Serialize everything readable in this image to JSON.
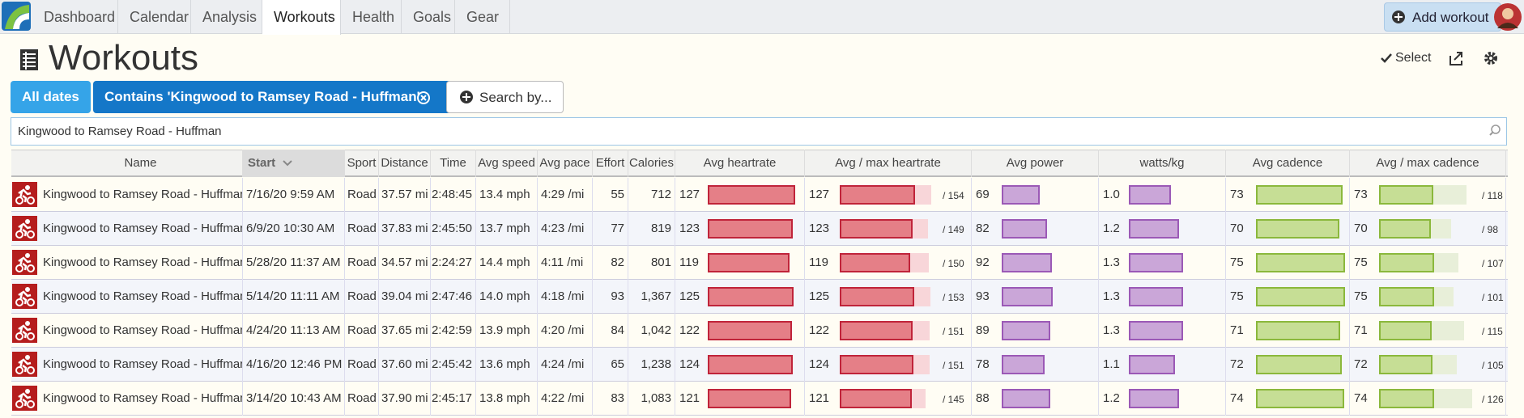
{
  "nav": {
    "items": [
      "Dashboard",
      "Calendar",
      "Analysis",
      "Workouts",
      "Health",
      "Goals",
      "Gear"
    ],
    "active": 3,
    "add_button": "Add workout"
  },
  "header": {
    "title": "Workouts",
    "select": "Select"
  },
  "filters": {
    "all_dates": "All dates",
    "contains": "Contains 'Kingwood to Ramsey Road - Huffman'",
    "search_by": "Search by..."
  },
  "search": {
    "value": "Kingwood to Ramsey Road - Huffman"
  },
  "table": {
    "columns": [
      "Name",
      "Start",
      "Sport",
      "Distance",
      "Time",
      "Avg speed",
      "Avg pace",
      "Effort",
      "Calories",
      "Avg heartrate",
      "Avg / max heartrate",
      "Avg power",
      "watts/kg",
      "Avg cadence",
      "Avg / max cadence"
    ],
    "sort_column": 1,
    "rows": [
      {
        "name": "Kingwood to Ramsey Road - Huffman",
        "start": "7/16/20 9:59 AM",
        "sport": "Road",
        "distance": "37.57 mi",
        "time": "2:48:45",
        "speed": "13.4 mph",
        "pace": "4:29 /mi",
        "effort": 55,
        "calories": 712,
        "hr": 127,
        "hr_max": {
          "value": 154,
          "label": "/ 154"
        },
        "power": 69,
        "wkg": {
          "value": 1.0,
          "label": "1.0"
        },
        "cadence": 73,
        "cadence_max": {
          "value": 118,
          "label": "/ 118"
        }
      },
      {
        "name": "Kingwood to Ramsey Road - Huffman",
        "start": "6/9/20 10:30 AM",
        "sport": "Road",
        "distance": "37.83 mi",
        "time": "2:45:50",
        "speed": "13.7 mph",
        "pace": "4:23 /mi",
        "effort": 77,
        "calories": 819,
        "hr": 123,
        "hr_max": {
          "value": 149,
          "label": "/ 149"
        },
        "power": 82,
        "wkg": 1.2,
        "cadence": 70,
        "cadence_max": {
          "value": 98,
          "label": "/ 98"
        }
      },
      {
        "name": "Kingwood to Ramsey Road - Huffman",
        "start": "5/28/20 11:37 AM",
        "sport": "Road",
        "distance": "34.57 mi",
        "time": "2:24:27",
        "speed": "14.4 mph",
        "pace": "4:11 /mi",
        "effort": 82,
        "calories": 801,
        "hr": 119,
        "hr_max": {
          "value": 150,
          "label": "/ 150"
        },
        "power": 92,
        "wkg": 1.3,
        "cadence": 75,
        "cadence_max": {
          "value": 107,
          "label": "/ 107"
        }
      },
      {
        "name": "Kingwood to Ramsey Road - Huffman",
        "start": "5/14/20 11:11 AM",
        "sport": "Road",
        "distance": "39.04 mi",
        "time": "2:47:46",
        "speed": "14.0 mph",
        "pace": "4:18 /mi",
        "effort": 93,
        "calories": {
          "value": 1367,
          "label": "1,367"
        },
        "hr": 125,
        "hr_max": {
          "value": 153,
          "label": "/ 153"
        },
        "power": 93,
        "wkg": 1.3,
        "cadence": 75,
        "cadence_max": {
          "value": 101,
          "label": "/ 101"
        }
      },
      {
        "name": "Kingwood to Ramsey Road - Huffman",
        "start": "4/24/20 11:13 AM",
        "sport": "Road",
        "distance": "37.65 mi",
        "time": "2:42:59",
        "speed": "13.9 mph",
        "pace": "4:20 /mi",
        "effort": 84,
        "calories": {
          "value": 1042,
          "label": "1,042"
        },
        "hr": 122,
        "hr_max": {
          "value": 151,
          "label": "/ 151"
        },
        "power": 89,
        "wkg": 1.3,
        "cadence": 71,
        "cadence_max": {
          "value": 115,
          "label": "/ 115"
        }
      },
      {
        "name": "Kingwood to Ramsey Road - Huffman",
        "start": "4/16/20 12:46 PM",
        "sport": "Road",
        "distance": "37.60 mi",
        "time": "2:45:42",
        "speed": "13.6 mph",
        "pace": "4:24 /mi",
        "effort": 65,
        "calories": {
          "value": 1238,
          "label": "1,238"
        },
        "hr": 124,
        "hr_max": {
          "value": 151,
          "label": "/ 151"
        },
        "power": 78,
        "wkg": 1.1,
        "cadence": 72,
        "cadence_max": {
          "value": 105,
          "label": "/ 105"
        }
      },
      {
        "name": "Kingwood to Ramsey Road - Huffman",
        "start": "3/14/20 10:43 AM",
        "sport": "Road",
        "distance": "37.90 mi",
        "time": "2:45:17",
        "speed": "13.8 mph",
        "pace": "4:22 /mi",
        "effort": 83,
        "calories": {
          "value": 1083,
          "label": "1,083"
        },
        "hr": 121,
        "hr_max": {
          "value": 145,
          "label": "/ 145"
        },
        "power": 88,
        "wkg": 1.2,
        "cadence": 74,
        "cadence_max": {
          "value": 126,
          "label": "/ 126"
        }
      }
    ]
  }
}
